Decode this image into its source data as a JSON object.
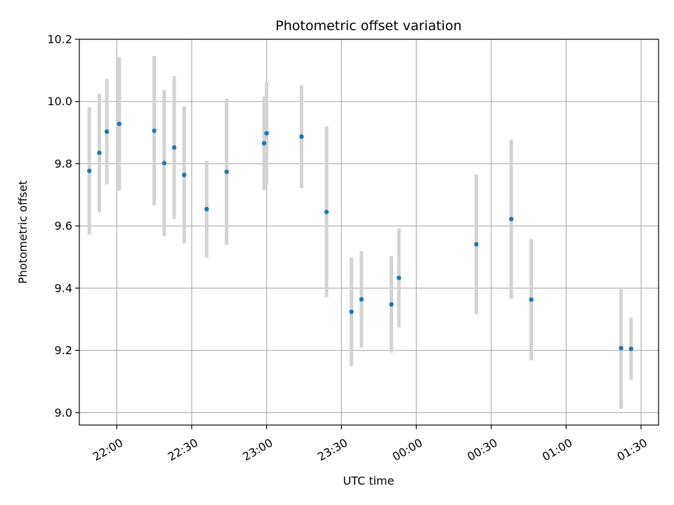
{
  "chart_data": {
    "type": "scatter",
    "title": "Photometric offset variation",
    "xlabel": "UTC time",
    "ylabel": "Photometric offset",
    "ylim": [
      8.96,
      10.2
    ],
    "xlim": [
      "21:45",
      "01:37"
    ],
    "grid": true,
    "x_ticks": [
      "22:00",
      "22:30",
      "23:00",
      "23:30",
      "00:00",
      "00:30",
      "01:00",
      "01:30"
    ],
    "y_ticks": [
      "9.0",
      "9.2",
      "9.4",
      "9.6",
      "9.8",
      "10.0",
      "10.2"
    ],
    "error_bar_color": "#d3d3d3",
    "marker_color": "#1f77b4",
    "points": [
      {
        "time": "21:49",
        "y": 9.777,
        "err": 0.205
      },
      {
        "time": "21:53",
        "y": 9.835,
        "err": 0.19
      },
      {
        "time": "21:56",
        "y": 9.903,
        "err": 0.17
      },
      {
        "time": "22:01",
        "y": 9.928,
        "err": 0.215
      },
      {
        "time": "22:15",
        "y": 9.906,
        "err": 0.24
      },
      {
        "time": "22:19",
        "y": 9.802,
        "err": 0.235
      },
      {
        "time": "22:23",
        "y": 9.852,
        "err": 0.23
      },
      {
        "time": "22:27",
        "y": 9.764,
        "err": 0.22
      },
      {
        "time": "22:36",
        "y": 9.654,
        "err": 0.155
      },
      {
        "time": "22:44",
        "y": 9.774,
        "err": 0.235
      },
      {
        "time": "22:59",
        "y": 9.866,
        "err": 0.15
      },
      {
        "time": "23:00",
        "y": 9.898,
        "err": 0.165
      },
      {
        "time": "23:14",
        "y": 9.887,
        "err": 0.165
      },
      {
        "time": "23:24",
        "y": 9.645,
        "err": 0.275
      },
      {
        "time": "23:34",
        "y": 9.324,
        "err": 0.175
      },
      {
        "time": "23:38",
        "y": 9.364,
        "err": 0.155
      },
      {
        "time": "23:50",
        "y": 9.348,
        "err": 0.155
      },
      {
        "time": "23:53",
        "y": 9.433,
        "err": 0.16
      },
      {
        "time": "00:24",
        "y": 9.541,
        "err": 0.225
      },
      {
        "time": "00:38",
        "y": 9.622,
        "err": 0.255
      },
      {
        "time": "00:46",
        "y": 9.363,
        "err": 0.195
      },
      {
        "time": "01:22",
        "y": 9.207,
        "err": 0.195
      },
      {
        "time": "01:26",
        "y": 9.205,
        "err": 0.1
      }
    ]
  }
}
